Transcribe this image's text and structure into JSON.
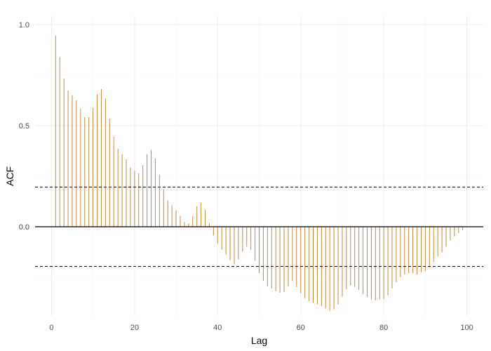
{
  "chart_data": {
    "type": "bar",
    "title": "",
    "xlabel": "Lag",
    "ylabel": "ACF",
    "xlim": [
      -3.95,
      103.95
    ],
    "ylim": [
      -0.4,
      1.0
    ],
    "xticks": [
      0,
      20,
      40,
      60,
      80,
      100
    ],
    "yticks": [
      0.0,
      0.5,
      1.0
    ],
    "ytick_labels": [
      "0.0",
      "0.5",
      "1.0"
    ],
    "grid": true,
    "legend": "none",
    "confidence_bound": 0.196,
    "colors": {
      "bars": "#c8883a",
      "zero_line": "#000000",
      "ci_line": "#000000",
      "grid": "#ebebeb"
    },
    "lags": [
      1,
      2,
      3,
      4,
      5,
      6,
      7,
      8,
      9,
      10,
      11,
      12,
      13,
      14,
      15,
      16,
      17,
      18,
      19,
      20,
      21,
      22,
      23,
      24,
      25,
      26,
      27,
      28,
      29,
      30,
      31,
      32,
      33,
      34,
      35,
      36,
      37,
      38,
      39,
      40,
      41,
      42,
      43,
      44,
      45,
      46,
      47,
      48,
      49,
      50,
      51,
      52,
      53,
      54,
      55,
      56,
      57,
      58,
      59,
      60,
      61,
      62,
      63,
      64,
      65,
      66,
      67,
      68,
      69,
      70,
      71,
      72,
      73,
      74,
      75,
      76,
      77,
      78,
      79,
      80,
      81,
      82,
      83,
      84,
      85,
      86,
      87,
      88,
      89,
      90,
      91,
      92,
      93,
      94,
      95,
      96,
      97,
      98,
      99
    ],
    "values": [
      0.946,
      0.839,
      0.733,
      0.674,
      0.65,
      0.625,
      0.584,
      0.542,
      0.542,
      0.588,
      0.655,
      0.681,
      0.634,
      0.535,
      0.445,
      0.387,
      0.36,
      0.333,
      0.294,
      0.277,
      0.264,
      0.305,
      0.36,
      0.38,
      0.338,
      0.258,
      0.185,
      0.13,
      0.106,
      0.082,
      0.054,
      0.023,
      0.016,
      0.054,
      0.102,
      0.119,
      0.085,
      0.018,
      -0.043,
      -0.082,
      -0.113,
      -0.137,
      -0.165,
      -0.186,
      -0.162,
      -0.122,
      -0.099,
      -0.113,
      -0.168,
      -0.229,
      -0.268,
      -0.295,
      -0.306,
      -0.319,
      -0.326,
      -0.322,
      -0.295,
      -0.269,
      -0.299,
      -0.328,
      -0.353,
      -0.367,
      -0.377,
      -0.384,
      -0.394,
      -0.404,
      -0.415,
      -0.408,
      -0.385,
      -0.346,
      -0.309,
      -0.288,
      -0.298,
      -0.312,
      -0.333,
      -0.347,
      -0.36,
      -0.364,
      -0.36,
      -0.357,
      -0.339,
      -0.305,
      -0.274,
      -0.25,
      -0.236,
      -0.229,
      -0.229,
      -0.236,
      -0.225,
      -0.219,
      -0.202,
      -0.174,
      -0.147,
      -0.126,
      -0.099,
      -0.068,
      -0.048,
      -0.031,
      -0.017
    ]
  }
}
